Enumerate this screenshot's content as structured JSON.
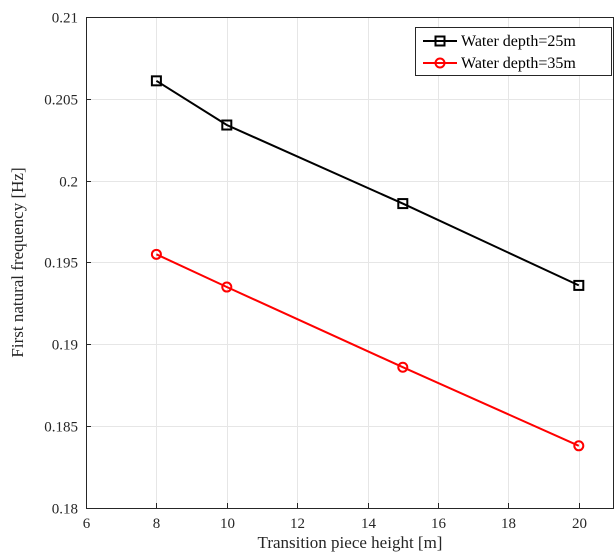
{
  "chart_data": {
    "type": "line",
    "title": "",
    "xlabel": "Transition piece height [m]",
    "ylabel": "First natural frequency [Hz]",
    "xlim": [
      6,
      21
    ],
    "ylim": [
      0.18,
      0.21
    ],
    "xticks": [
      6,
      8,
      10,
      12,
      14,
      16,
      18,
      20
    ],
    "yticks": [
      0.18,
      0.185,
      0.19,
      0.195,
      0.2,
      0.205,
      0.21
    ],
    "ytick_labels": [
      "0.18",
      "0.185",
      "0.19",
      "0.195",
      "0.2",
      "0.205",
      "0.21"
    ],
    "grid": true,
    "legend_position": "top-right",
    "series": [
      {
        "name": "Water depth=25m",
        "color": "#000000",
        "marker": "square",
        "x": [
          8,
          10,
          15,
          20
        ],
        "y": [
          0.2061,
          0.2034,
          0.1986,
          0.1936
        ]
      },
      {
        "name": "Water depth=35m",
        "color": "#ff0000",
        "marker": "circle",
        "x": [
          8,
          10,
          15,
          20
        ],
        "y": [
          0.1955,
          0.1935,
          0.1886,
          0.1838
        ]
      }
    ]
  }
}
